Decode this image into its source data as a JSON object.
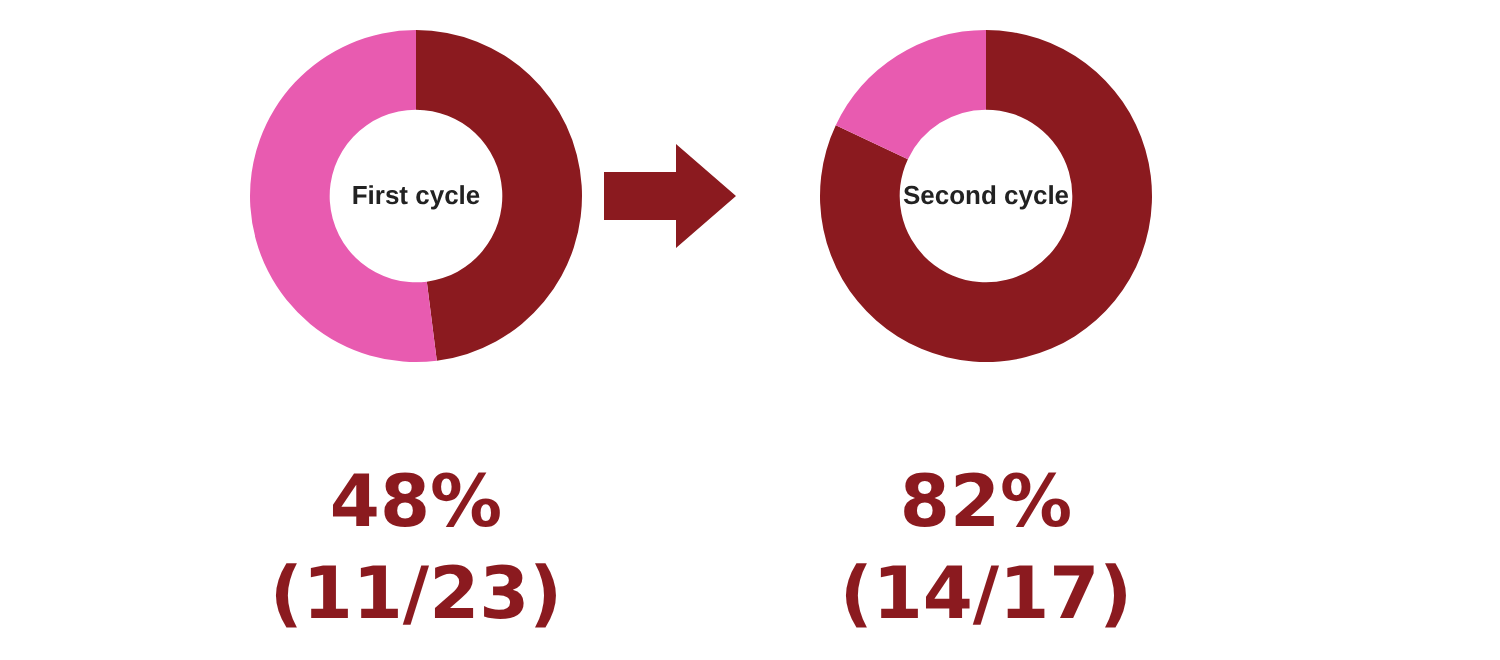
{
  "chart_data": [
    {
      "type": "donut",
      "title": "First cycle",
      "categories": [
        null,
        null
      ],
      "values": [
        48,
        52
      ],
      "colors": [
        "#8b1a1f",
        "#e85bb0"
      ],
      "annotations": [
        "48%",
        "(11/23)"
      ]
    },
    {
      "type": "donut",
      "title": "Second cycle",
      "categories": [
        null,
        null
      ],
      "values": [
        82,
        18
      ],
      "colors": [
        "#8b1a1f",
        "#e85bb0"
      ],
      "annotations": [
        "82%",
        "(14/17)"
      ]
    }
  ]
}
